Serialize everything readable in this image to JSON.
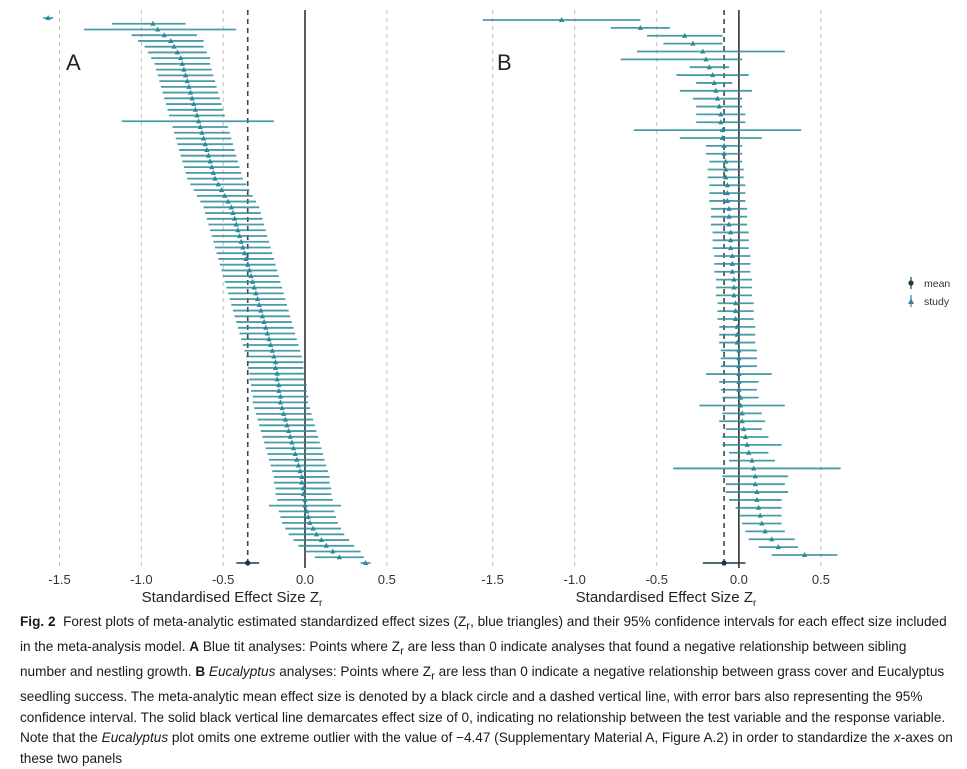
{
  "chart_data": [
    {
      "panel": "A",
      "type": "forest",
      "xlabel": "Standardised Effect Size Zr",
      "xticks": [
        -1.5,
        -1.0,
        -0.5,
        0.0,
        0.5
      ],
      "xlim": [
        -1.65,
        0.55
      ],
      "zero_line": 0.0,
      "mean": {
        "estimate": -0.35,
        "lower": -0.42,
        "upper": -0.28
      },
      "studies": [
        {
          "estimate": -1.57,
          "lower": -1.6,
          "upper": -1.54
        },
        {
          "estimate": -0.93,
          "lower": -1.18,
          "upper": -0.73
        },
        {
          "estimate": -0.9,
          "lower": -1.35,
          "upper": -0.42
        },
        {
          "estimate": -0.86,
          "lower": -1.06,
          "upper": -0.66
        },
        {
          "estimate": -0.82,
          "lower": -1.02,
          "upper": -0.62
        },
        {
          "estimate": -0.8,
          "lower": -0.98,
          "upper": -0.62
        },
        {
          "estimate": -0.78,
          "lower": -0.96,
          "upper": -0.6
        },
        {
          "estimate": -0.76,
          "lower": -0.94,
          "upper": -0.58
        },
        {
          "estimate": -0.75,
          "lower": -0.92,
          "upper": -0.58
        },
        {
          "estimate": -0.74,
          "lower": -0.91,
          "upper": -0.57
        },
        {
          "estimate": -0.73,
          "lower": -0.9,
          "upper": -0.56
        },
        {
          "estimate": -0.72,
          "lower": -0.89,
          "upper": -0.55
        },
        {
          "estimate": -0.71,
          "lower": -0.88,
          "upper": -0.54
        },
        {
          "estimate": -0.7,
          "lower": -0.87,
          "upper": -0.53
        },
        {
          "estimate": -0.69,
          "lower": -0.86,
          "upper": -0.52
        },
        {
          "estimate": -0.68,
          "lower": -0.85,
          "upper": -0.51
        },
        {
          "estimate": -0.67,
          "lower": -0.84,
          "upper": -0.5
        },
        {
          "estimate": -0.66,
          "lower": -0.83,
          "upper": -0.49
        },
        {
          "estimate": -0.65,
          "lower": -1.12,
          "upper": -0.19
        },
        {
          "estimate": -0.64,
          "lower": -0.81,
          "upper": -0.47
        },
        {
          "estimate": -0.63,
          "lower": -0.8,
          "upper": -0.46
        },
        {
          "estimate": -0.62,
          "lower": -0.79,
          "upper": -0.45
        },
        {
          "estimate": -0.61,
          "lower": -0.78,
          "upper": -0.44
        },
        {
          "estimate": -0.6,
          "lower": -0.77,
          "upper": -0.43
        },
        {
          "estimate": -0.59,
          "lower": -0.76,
          "upper": -0.42
        },
        {
          "estimate": -0.58,
          "lower": -0.75,
          "upper": -0.41
        },
        {
          "estimate": -0.57,
          "lower": -0.74,
          "upper": -0.4
        },
        {
          "estimate": -0.56,
          "lower": -0.73,
          "upper": -0.39
        },
        {
          "estimate": -0.55,
          "lower": -0.72,
          "upper": -0.38
        },
        {
          "estimate": -0.53,
          "lower": -0.7,
          "upper": -0.36
        },
        {
          "estimate": -0.51,
          "lower": -0.68,
          "upper": -0.34
        },
        {
          "estimate": -0.49,
          "lower": -0.66,
          "upper": -0.32
        },
        {
          "estimate": -0.47,
          "lower": -0.64,
          "upper": -0.3
        },
        {
          "estimate": -0.45,
          "lower": -0.62,
          "upper": -0.28
        },
        {
          "estimate": -0.44,
          "lower": -0.61,
          "upper": -0.27
        },
        {
          "estimate": -0.43,
          "lower": -0.6,
          "upper": -0.26
        },
        {
          "estimate": -0.42,
          "lower": -0.59,
          "upper": -0.25
        },
        {
          "estimate": -0.41,
          "lower": -0.58,
          "upper": -0.24
        },
        {
          "estimate": -0.4,
          "lower": -0.57,
          "upper": -0.23
        },
        {
          "estimate": -0.39,
          "lower": -0.56,
          "upper": -0.22
        },
        {
          "estimate": -0.38,
          "lower": -0.55,
          "upper": -0.21
        },
        {
          "estimate": -0.37,
          "lower": -0.54,
          "upper": -0.2
        },
        {
          "estimate": -0.36,
          "lower": -0.53,
          "upper": -0.19
        },
        {
          "estimate": -0.35,
          "lower": -0.52,
          "upper": -0.18
        },
        {
          "estimate": -0.34,
          "lower": -0.51,
          "upper": -0.17
        },
        {
          "estimate": -0.33,
          "lower": -0.5,
          "upper": -0.16
        },
        {
          "estimate": -0.32,
          "lower": -0.49,
          "upper": -0.15
        },
        {
          "estimate": -0.31,
          "lower": -0.48,
          "upper": -0.14
        },
        {
          "estimate": -0.3,
          "lower": -0.47,
          "upper": -0.13
        },
        {
          "estimate": -0.29,
          "lower": -0.46,
          "upper": -0.12
        },
        {
          "estimate": -0.28,
          "lower": -0.45,
          "upper": -0.11
        },
        {
          "estimate": -0.27,
          "lower": -0.44,
          "upper": -0.1
        },
        {
          "estimate": -0.26,
          "lower": -0.43,
          "upper": -0.09
        },
        {
          "estimate": -0.25,
          "lower": -0.42,
          "upper": -0.08
        },
        {
          "estimate": -0.24,
          "lower": -0.41,
          "upper": -0.07
        },
        {
          "estimate": -0.23,
          "lower": -0.4,
          "upper": -0.06
        },
        {
          "estimate": -0.22,
          "lower": -0.39,
          "upper": -0.05
        },
        {
          "estimate": -0.21,
          "lower": -0.38,
          "upper": -0.04
        },
        {
          "estimate": -0.2,
          "lower": -0.37,
          "upper": -0.03
        },
        {
          "estimate": -0.19,
          "lower": -0.36,
          "upper": -0.02
        },
        {
          "estimate": -0.18,
          "lower": -0.35,
          "upper": -0.01
        },
        {
          "estimate": -0.18,
          "lower": -0.35,
          "upper": -0.01
        },
        {
          "estimate": -0.17,
          "lower": -0.34,
          "upper": 0.0
        },
        {
          "estimate": -0.17,
          "lower": -0.34,
          "upper": 0.0
        },
        {
          "estimate": -0.16,
          "lower": -0.33,
          "upper": 0.01
        },
        {
          "estimate": -0.16,
          "lower": -0.33,
          "upper": 0.01
        },
        {
          "estimate": -0.15,
          "lower": -0.32,
          "upper": 0.02
        },
        {
          "estimate": -0.15,
          "lower": -0.32,
          "upper": 0.02
        },
        {
          "estimate": -0.14,
          "lower": -0.31,
          "upper": 0.03
        },
        {
          "estimate": -0.13,
          "lower": -0.3,
          "upper": 0.04
        },
        {
          "estimate": -0.12,
          "lower": -0.29,
          "upper": 0.05
        },
        {
          "estimate": -0.11,
          "lower": -0.28,
          "upper": 0.06
        },
        {
          "estimate": -0.1,
          "lower": -0.27,
          "upper": 0.07
        },
        {
          "estimate": -0.09,
          "lower": -0.26,
          "upper": 0.08
        },
        {
          "estimate": -0.08,
          "lower": -0.25,
          "upper": 0.09
        },
        {
          "estimate": -0.07,
          "lower": -0.24,
          "upper": 0.1
        },
        {
          "estimate": -0.06,
          "lower": -0.23,
          "upper": 0.11
        },
        {
          "estimate": -0.05,
          "lower": -0.22,
          "upper": 0.12
        },
        {
          "estimate": -0.04,
          "lower": -0.21,
          "upper": 0.13
        },
        {
          "estimate": -0.03,
          "lower": -0.2,
          "upper": 0.14
        },
        {
          "estimate": -0.02,
          "lower": -0.19,
          "upper": 0.15
        },
        {
          "estimate": -0.02,
          "lower": -0.19,
          "upper": 0.15
        },
        {
          "estimate": -0.01,
          "lower": -0.18,
          "upper": 0.16
        },
        {
          "estimate": -0.01,
          "lower": -0.18,
          "upper": 0.16
        },
        {
          "estimate": 0.0,
          "lower": -0.17,
          "upper": 0.17
        },
        {
          "estimate": 0.0,
          "lower": -0.22,
          "upper": 0.22
        },
        {
          "estimate": 0.01,
          "lower": -0.16,
          "upper": 0.18
        },
        {
          "estimate": 0.02,
          "lower": -0.15,
          "upper": 0.19
        },
        {
          "estimate": 0.03,
          "lower": -0.14,
          "upper": 0.2
        },
        {
          "estimate": 0.05,
          "lower": -0.12,
          "upper": 0.22
        },
        {
          "estimate": 0.07,
          "lower": -0.1,
          "upper": 0.24
        },
        {
          "estimate": 0.1,
          "lower": -0.07,
          "upper": 0.27
        },
        {
          "estimate": 0.13,
          "lower": -0.04,
          "upper": 0.3
        },
        {
          "estimate": 0.17,
          "lower": 0.0,
          "upper": 0.34
        },
        {
          "estimate": 0.21,
          "lower": 0.06,
          "upper": 0.36
        },
        {
          "estimate": 0.37,
          "lower": 0.34,
          "upper": 0.4
        }
      ]
    },
    {
      "panel": "B",
      "type": "forest",
      "xlabel": "Standardised Effect Size Zr",
      "xticks": [
        -1.5,
        -1.0,
        -0.5,
        0.0,
        0.5
      ],
      "xlim": [
        -1.65,
        0.75
      ],
      "zero_line": 0.0,
      "mean": {
        "estimate": -0.09,
        "lower": -0.22,
        "upper": 0.04
      },
      "studies": [
        {
          "estimate": -1.08,
          "lower": -1.56,
          "upper": -0.6
        },
        {
          "estimate": -0.6,
          "lower": -0.78,
          "upper": -0.42
        },
        {
          "estimate": -0.33,
          "lower": -0.56,
          "upper": -0.1
        },
        {
          "estimate": -0.28,
          "lower": -0.46,
          "upper": -0.1
        },
        {
          "estimate": -0.22,
          "lower": -0.62,
          "upper": 0.28
        },
        {
          "estimate": -0.2,
          "lower": -0.72,
          "upper": 0.02
        },
        {
          "estimate": -0.18,
          "lower": -0.3,
          "upper": -0.06
        },
        {
          "estimate": -0.16,
          "lower": -0.38,
          "upper": 0.06
        },
        {
          "estimate": -0.15,
          "lower": -0.26,
          "upper": -0.04
        },
        {
          "estimate": -0.14,
          "lower": -0.36,
          "upper": 0.08
        },
        {
          "estimate": -0.13,
          "lower": -0.28,
          "upper": 0.02
        },
        {
          "estimate": -0.12,
          "lower": -0.26,
          "upper": 0.02
        },
        {
          "estimate": -0.11,
          "lower": -0.26,
          "upper": 0.04
        },
        {
          "estimate": -0.11,
          "lower": -0.26,
          "upper": 0.04
        },
        {
          "estimate": -0.1,
          "lower": -0.64,
          "upper": 0.38
        },
        {
          "estimate": -0.1,
          "lower": -0.36,
          "upper": 0.14
        },
        {
          "estimate": -0.09,
          "lower": -0.2,
          "upper": 0.02
        },
        {
          "estimate": -0.09,
          "lower": -0.2,
          "upper": 0.02
        },
        {
          "estimate": -0.08,
          "lower": -0.18,
          "upper": 0.02
        },
        {
          "estimate": -0.08,
          "lower": -0.19,
          "upper": 0.03
        },
        {
          "estimate": -0.08,
          "lower": -0.19,
          "upper": 0.03
        },
        {
          "estimate": -0.07,
          "lower": -0.18,
          "upper": 0.04
        },
        {
          "estimate": -0.07,
          "lower": -0.18,
          "upper": 0.04
        },
        {
          "estimate": -0.07,
          "lower": -0.18,
          "upper": 0.04
        },
        {
          "estimate": -0.06,
          "lower": -0.17,
          "upper": 0.05
        },
        {
          "estimate": -0.06,
          "lower": -0.17,
          "upper": 0.05
        },
        {
          "estimate": -0.06,
          "lower": -0.17,
          "upper": 0.05
        },
        {
          "estimate": -0.05,
          "lower": -0.16,
          "upper": 0.06
        },
        {
          "estimate": -0.05,
          "lower": -0.16,
          "upper": 0.06
        },
        {
          "estimate": -0.05,
          "lower": -0.16,
          "upper": 0.06
        },
        {
          "estimate": -0.04,
          "lower": -0.15,
          "upper": 0.07
        },
        {
          "estimate": -0.04,
          "lower": -0.15,
          "upper": 0.07
        },
        {
          "estimate": -0.04,
          "lower": -0.15,
          "upper": 0.07
        },
        {
          "estimate": -0.03,
          "lower": -0.14,
          "upper": 0.08
        },
        {
          "estimate": -0.03,
          "lower": -0.14,
          "upper": 0.08
        },
        {
          "estimate": -0.03,
          "lower": -0.14,
          "upper": 0.08
        },
        {
          "estimate": -0.02,
          "lower": -0.13,
          "upper": 0.09
        },
        {
          "estimate": -0.02,
          "lower": -0.13,
          "upper": 0.09
        },
        {
          "estimate": -0.02,
          "lower": -0.13,
          "upper": 0.09
        },
        {
          "estimate": -0.01,
          "lower": -0.12,
          "upper": 0.1
        },
        {
          "estimate": -0.01,
          "lower": -0.12,
          "upper": 0.1
        },
        {
          "estimate": -0.01,
          "lower": -0.12,
          "upper": 0.1
        },
        {
          "estimate": 0.0,
          "lower": -0.11,
          "upper": 0.11
        },
        {
          "estimate": 0.0,
          "lower": -0.11,
          "upper": 0.11
        },
        {
          "estimate": 0.0,
          "lower": -0.11,
          "upper": 0.11
        },
        {
          "estimate": 0.0,
          "lower": -0.2,
          "upper": 0.2
        },
        {
          "estimate": 0.0,
          "lower": -0.12,
          "upper": 0.12
        },
        {
          "estimate": 0.0,
          "lower": -0.11,
          "upper": 0.11
        },
        {
          "estimate": 0.01,
          "lower": -0.1,
          "upper": 0.12
        },
        {
          "estimate": 0.01,
          "lower": -0.24,
          "upper": 0.28
        },
        {
          "estimate": 0.02,
          "lower": -0.1,
          "upper": 0.14
        },
        {
          "estimate": 0.02,
          "lower": -0.12,
          "upper": 0.16
        },
        {
          "estimate": 0.03,
          "lower": -0.08,
          "upper": 0.14
        },
        {
          "estimate": 0.04,
          "lower": -0.1,
          "upper": 0.18
        },
        {
          "estimate": 0.05,
          "lower": -0.1,
          "upper": 0.26
        },
        {
          "estimate": 0.06,
          "lower": -0.06,
          "upper": 0.18
        },
        {
          "estimate": 0.08,
          "lower": -0.06,
          "upper": 0.22
        },
        {
          "estimate": 0.09,
          "lower": -0.4,
          "upper": 0.62
        },
        {
          "estimate": 0.1,
          "lower": -0.1,
          "upper": 0.3
        },
        {
          "estimate": 0.1,
          "lower": -0.08,
          "upper": 0.28
        },
        {
          "estimate": 0.11,
          "lower": -0.08,
          "upper": 0.3
        },
        {
          "estimate": 0.11,
          "lower": -0.06,
          "upper": 0.26
        },
        {
          "estimate": 0.12,
          "lower": -0.02,
          "upper": 0.26
        },
        {
          "estimate": 0.13,
          "lower": 0.0,
          "upper": 0.26
        },
        {
          "estimate": 0.14,
          "lower": 0.02,
          "upper": 0.26
        },
        {
          "estimate": 0.16,
          "lower": 0.04,
          "upper": 0.28
        },
        {
          "estimate": 0.2,
          "lower": 0.06,
          "upper": 0.34
        },
        {
          "estimate": 0.24,
          "lower": 0.12,
          "upper": 0.36
        },
        {
          "estimate": 0.4,
          "lower": 0.2,
          "upper": 0.6
        }
      ]
    }
  ],
  "panels": {
    "a_label": "A",
    "b_label": "B",
    "xlabel_main": "Standardised Effect Size Z",
    "xlabel_sub": "r",
    "tick_labels": [
      "-1.5",
      "-1.0",
      "-0.5",
      "0.0",
      "0.5"
    ]
  },
  "legend": {
    "mean_label": "mean",
    "study_label": "study"
  },
  "colors": {
    "study": "#2b8a99",
    "mean": "#1f3a44",
    "zero_line": "#333333",
    "mean_dashed": "#444444",
    "grid_dashed": "#bdbdbd"
  },
  "caption": {
    "fig_label": "Fig. 2",
    "t1": "Forest plots of meta-analytic estimated standardized effect sizes (Z",
    "t1_sub": "r",
    "t2": ", blue triangles) and their 95% confidence intervals for each effect size included in the meta-analysis model. ",
    "a_bold": "A",
    "t3": " Blue tit analyses: Points where Z",
    "t3_sub": "r",
    "t4": " are less than 0 indicate analyses that found a negative relationship between sibling number and nestling growth. ",
    "b_bold": "B",
    "b_ital": "Eucalyptus",
    "t5": " analyses: Points where Z",
    "t5_sub": "r",
    "t6": " are less than 0 indicate a negative relationship between grass cover and Eucalyptus seedling success. The meta-analytic mean effect size is denoted by a black circle and a dashed vertical line, with error bars also representing the 95% confidence interval. The solid black vertical line demarcates effect size of 0, indicating no relationship between the test variable and the response variable. Note that the ",
    "t6_ital": "Eucalyptus",
    "t7": " plot omits one extreme outlier with the value of −4.47 (Supplementary Material A, Figure A.2) in order to standardize the ",
    "t7_ital": "x",
    "t8": "-axes on these two panels"
  }
}
